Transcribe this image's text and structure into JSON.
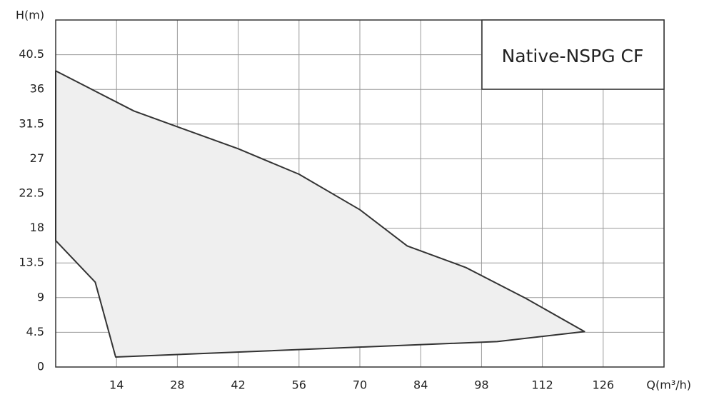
{
  "chart_data": {
    "type": "area",
    "legend_label": "Native-NSPG CF",
    "xlabel": "Q(m³/h)",
    "ylabel": "H(m)",
    "series": [
      {
        "color": "#efefef",
        "x": [
          0,
          18,
          42,
          56,
          70,
          80.9,
          94.4,
          108.2,
          121.7,
          101.6,
          13.8,
          9.1,
          0
        ],
        "values": [
          38.4,
          33.2,
          28.3,
          25,
          20.4,
          15.7,
          12.9,
          8.9,
          4.6,
          3.3,
          1.3,
          11,
          16.4
        ]
      }
    ],
    "xlim": [
      0,
      140
    ],
    "ylim": [
      0,
      45
    ],
    "xticks": [
      14,
      28,
      42,
      56,
      70,
      84,
      98,
      112,
      126
    ],
    "yticks": [
      0,
      4.5,
      9,
      13.5,
      18,
      22.5,
      27,
      31.5,
      36,
      40.5
    ],
    "grid": true
  }
}
